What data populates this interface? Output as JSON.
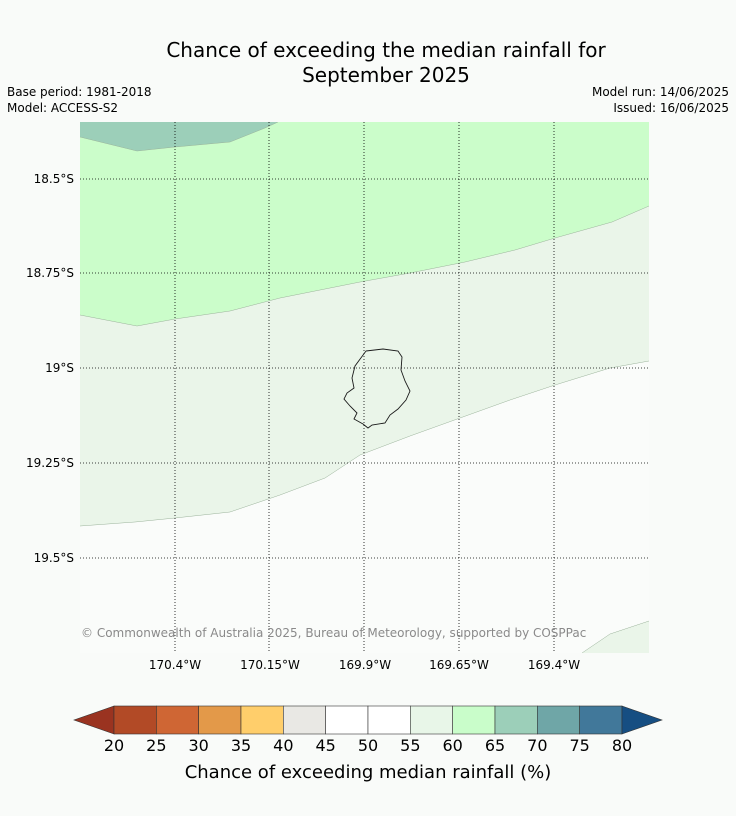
{
  "title": {
    "line1": "Chance of exceeding the median rainfall for",
    "line2": "September 2025"
  },
  "info": {
    "base_period": "Base period: 1981-2018",
    "model": "Model: ACCESS-S2",
    "model_run": "Model run: 14/06/2025",
    "issued": "Issued: 16/06/2025"
  },
  "map": {
    "latitude_labels": [
      "18.5°S",
      "18.75°S",
      "19°S",
      "19.25°S",
      "19.5°S"
    ],
    "longitude_labels": [
      "170.4°W",
      "170.15°W",
      "169.9°W",
      "169.65°W",
      "169.4°W"
    ],
    "copyright": "© Commonwealth of Australia 2025, Bureau of Meteorology, supported by COSPPac",
    "zone_colors": {
      "65_70": "#9ccfb9",
      "60_65": "#cbfdca",
      "55_60": "#eaf5e9",
      "50_55": "#fafcfa"
    },
    "gridlines": true
  },
  "colorbar": {
    "ticks": [
      "20",
      "25",
      "30",
      "35",
      "40",
      "45",
      "50",
      "55",
      "60",
      "65",
      "70",
      "75",
      "80"
    ],
    "colors": [
      "#b24a26",
      "#cf6634",
      "#e39949",
      "#ffce6b",
      "#e9e8e4",
      "#ffffff",
      "#ffffff",
      "#e8f6e8",
      "#c9fdca",
      "#9ccfb9",
      "#6fa6a7",
      "#41789a"
    ],
    "under_color": "#9a3320",
    "over_color": "#164e82",
    "label": "Chance of exceeding median rainfall (%)"
  }
}
